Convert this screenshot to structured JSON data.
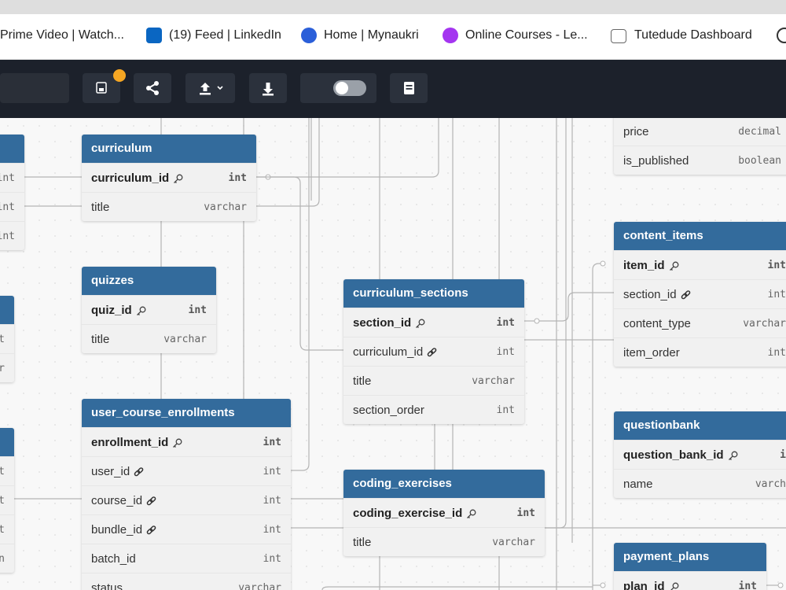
{
  "bookmarks": [
    "Prime Video | Watch...",
    "(19) Feed | LinkedIn",
    "Home | Mynaukri",
    "Online Courses - Le...",
    "Tutedude Dashboard"
  ],
  "tables": [
    {
      "name": "curriculum",
      "columns": [
        {
          "name": "curriculum_id",
          "type": "int",
          "key": "primary"
        },
        {
          "name": "title",
          "type": "varchar"
        }
      ]
    },
    {
      "name": "quizzes",
      "columns": [
        {
          "name": "quiz_id",
          "type": "int",
          "key": "primary"
        },
        {
          "name": "title",
          "type": "varchar"
        }
      ]
    },
    {
      "name": "user_course_enrollments",
      "columns": [
        {
          "name": "enrollment_id",
          "type": "int",
          "key": "primary"
        },
        {
          "name": "user_id",
          "type": "int",
          "key": "foreign"
        },
        {
          "name": "course_id",
          "type": "int",
          "key": "foreign"
        },
        {
          "name": "bundle_id",
          "type": "int",
          "key": "foreign"
        },
        {
          "name": "batch_id",
          "type": "int"
        },
        {
          "name": "status",
          "type": "varchar"
        }
      ]
    },
    {
      "name": "curriculum_sections",
      "columns": [
        {
          "name": "section_id",
          "type": "int",
          "key": "primary"
        },
        {
          "name": "curriculum_id",
          "type": "int",
          "key": "foreign"
        },
        {
          "name": "title",
          "type": "varchar"
        },
        {
          "name": "section_order",
          "type": "int"
        }
      ]
    },
    {
      "name": "coding_exercises",
      "columns": [
        {
          "name": "coding_exercise_id",
          "type": "int",
          "key": "primary"
        },
        {
          "name": "title",
          "type": "varchar"
        }
      ]
    },
    {
      "name": "content_items",
      "columns": [
        {
          "name": "item_id",
          "type": "int",
          "key": "primary"
        },
        {
          "name": "section_id",
          "type": "int",
          "key": "foreign"
        },
        {
          "name": "content_type",
          "type": "varchar"
        },
        {
          "name": "item_order",
          "type": "int"
        }
      ]
    },
    {
      "name": "questionbank",
      "columns": [
        {
          "name": "question_bank_id",
          "type": "i",
          "key": "primary"
        },
        {
          "name": "name",
          "type": "varch"
        }
      ]
    },
    {
      "name": "payment_plans",
      "columns": [
        {
          "name": "plan_id",
          "type": "int",
          "key": "primary"
        }
      ]
    },
    {
      "columns": [
        {
          "name": "price",
          "type": "decimal"
        },
        {
          "name": "is_published",
          "type": "boolean"
        }
      ]
    },
    {
      "columns": [
        {
          "type": "int"
        },
        {
          "type": "int"
        },
        {
          "type": "int"
        }
      ]
    },
    {
      "columns": [
        {
          "type": "t"
        },
        {
          "type": "r"
        }
      ]
    },
    {
      "columns": [
        {
          "type": "t"
        },
        {
          "type": "t"
        },
        {
          "type": "t"
        },
        {
          "type": "n"
        }
      ]
    }
  ]
}
